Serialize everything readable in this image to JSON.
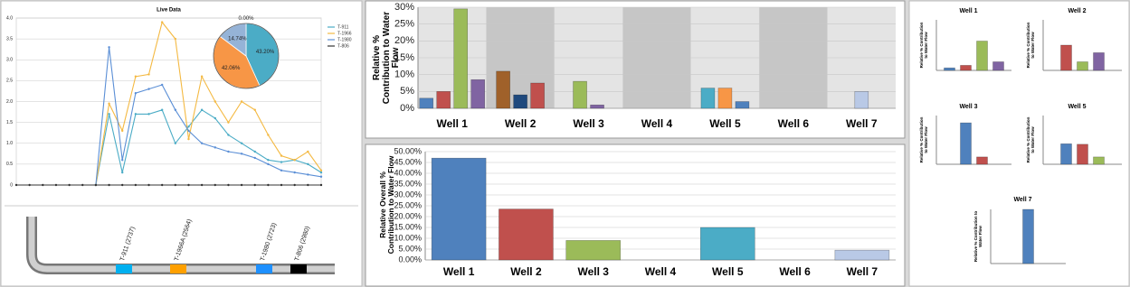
{
  "chart_data": [
    {
      "type": "line",
      "title": "Live Data",
      "categories": [
        null,
        null,
        null,
        null,
        null,
        null,
        null,
        null,
        null,
        null,
        null,
        null,
        null,
        null,
        null,
        null,
        null,
        null,
        null,
        null,
        null,
        null,
        null,
        null
      ],
      "series": [
        {
          "name": "T-911",
          "color": "#4bacc6",
          "values": [
            null,
            null,
            null,
            null,
            null,
            null,
            0,
            1.7,
            0.3,
            1.7,
            1.7,
            1.8,
            1.0,
            1.4,
            1.8,
            1.6,
            1.2,
            1.0,
            0.8,
            0.6,
            0.55,
            0.6,
            0.5,
            0.3
          ]
        },
        {
          "name": "T-1966",
          "color": "#f4b942",
          "values": [
            null,
            null,
            null,
            null,
            null,
            null,
            0,
            1.95,
            1.3,
            2.6,
            2.65,
            3.9,
            3.5,
            1.1,
            2.6,
            2.0,
            1.5,
            2.0,
            1.8,
            1.2,
            0.7,
            0.6,
            0.8,
            0.35
          ]
        },
        {
          "name": "T-1980",
          "color": "#5b8fd6",
          "values": [
            null,
            null,
            null,
            null,
            null,
            null,
            0,
            3.3,
            0.6,
            2.2,
            2.3,
            2.4,
            1.8,
            1.3,
            1.0,
            0.9,
            0.8,
            0.75,
            0.65,
            0.5,
            0.35,
            0.3,
            0.25,
            0.2
          ]
        },
        {
          "name": "T-806",
          "color": "#333333",
          "values": [
            0,
            0,
            0,
            0,
            0,
            0,
            0,
            0,
            0,
            0,
            0,
            0,
            0,
            0,
            0,
            0,
            0,
            0,
            0,
            0,
            0,
            0,
            0,
            0
          ]
        }
      ],
      "ylim": [
        0,
        4.0
      ],
      "yticks": [
        0,
        {
          "value": 0.5,
          "label": "0.5"
        },
        {
          "value": 1,
          "label": "1.0"
        },
        {
          "value": 1.5,
          "label": "1.5"
        },
        {
          "value": 2,
          "label": "2.0"
        },
        {
          "value": 2.5,
          "label": "2.5"
        },
        {
          "value": 3,
          "label": "3.0"
        },
        {
          "value": 3.5,
          "label": "3.5"
        },
        {
          "value": 4,
          "label": "4.0"
        }
      ],
      "grid": true
    },
    {
      "type": "pie",
      "values": [
        43.2,
        42.06,
        14.74,
        0.0
      ],
      "value_labels": [
        "43.20%",
        "42.06%",
        "14.74%",
        "0.00%"
      ],
      "colors": [
        "#4bacc6",
        "#f79646",
        "#95b3d7",
        "#1f497d"
      ]
    },
    {
      "type": "bar",
      "y_label": "Relative % Contribution to Water Flow",
      "groups": [
        {
          "category": "Well 1",
          "values": [
            3,
            5,
            29.5,
            8.5
          ],
          "colors": [
            "#4f81bd",
            "#c0504d",
            "#9bbb59",
            "#8064a2"
          ]
        },
        {
          "category": "Well 2",
          "values": [
            11,
            4,
            7.5
          ],
          "colors": [
            "#a0612a",
            "#1f497d",
            "#c0504d"
          ]
        },
        {
          "category": "Well 3",
          "values": [
            8,
            1
          ],
          "colors": [
            "#9bbb59",
            "#8064a2"
          ]
        },
        {
          "category": "Well 4",
          "values": [],
          "colors": []
        },
        {
          "category": "Well 5",
          "values": [
            6,
            6,
            2
          ],
          "colors": [
            "#4bacc6",
            "#f79646",
            "#4f81bd"
          ]
        },
        {
          "category": "Well 6",
          "values": [],
          "colors": []
        },
        {
          "category": "Well 7",
          "values": [
            5
          ],
          "colors": [
            "#b9c9e6"
          ]
        }
      ],
      "ylim": [
        0,
        30
      ],
      "yticks": [
        {
          "value": 0,
          "label": "0%"
        },
        {
          "value": 5,
          "label": "5%"
        },
        {
          "value": 10,
          "label": "10%"
        },
        {
          "value": 15,
          "label": "15%"
        },
        {
          "value": 20,
          "label": "20%"
        },
        {
          "value": 25,
          "label": "25%"
        },
        {
          "value": 30,
          "label": "30%"
        }
      ],
      "grid": true,
      "bands": true
    },
    {
      "type": "bar",
      "y_label": "Relative Overall % Contribution to Water Flow",
      "categories": [
        "Well 1",
        "Well 2",
        "Well 3",
        "Well 4",
        "Well 5",
        "Well 6",
        "Well 7"
      ],
      "values": [
        47,
        23.5,
        9,
        0,
        15,
        0,
        4.5
      ],
      "colors": [
        "#4f81bd",
        "#c0504d",
        "#9bbb59",
        "#8064a2",
        "#4bacc6",
        "#f79646",
        "#b9c9e6"
      ],
      "ylim": [
        0,
        50
      ],
      "yticks": [
        {
          "value": 0,
          "label": "0.00%"
        },
        {
          "value": 5,
          "label": "5.00%"
        },
        {
          "value": 10,
          "label": "10.00%"
        },
        {
          "value": 15,
          "label": "15.00%"
        },
        {
          "value": 20,
          "label": "20.00%"
        },
        {
          "value": 25,
          "label": "25.00%"
        },
        {
          "value": 30,
          "label": "30.00%"
        },
        {
          "value": 35,
          "label": "35.00%"
        },
        {
          "value": 40,
          "label": "40.00%"
        },
        {
          "value": 45,
          "label": "45.00%"
        },
        {
          "value": 50,
          "label": "50.00%"
        }
      ],
      "grid": true
    },
    {
      "type": "bar",
      "title": "Well 1",
      "y_label": "Relative % Contribution to Water Flow",
      "values": [
        5,
        10,
        58,
        17
      ],
      "colors": [
        "#4f81bd",
        "#c0504d",
        "#9bbb59",
        "#8064a2"
      ],
      "ylim": [
        0,
        100
      ]
    },
    {
      "type": "bar",
      "title": "Well 2",
      "y_label": "Relative % Contribution to Water Flow",
      "values": [
        50,
        17,
        35
      ],
      "colors": [
        "#c0504d",
        "#9bbb59",
        "#8064a2"
      ],
      "ylim": [
        0,
        100
      ]
    },
    {
      "type": "bar",
      "title": "Well 3",
      "y_label": "Relative % Contribution to Water Flow",
      "values": [
        85,
        15
      ],
      "colors": [
        "#4f81bd",
        "#c0504d"
      ],
      "ylim": [
        0,
        100
      ]
    },
    {
      "type": "bar",
      "title": "Well 5",
      "y_label": "Relative % Contribution to Water Flow",
      "values": [
        42,
        41,
        15
      ],
      "colors": [
        "#4f81bd",
        "#c0504d",
        "#9bbb59"
      ],
      "ylim": [
        0,
        100
      ]
    },
    {
      "type": "bar",
      "title": "Well 7",
      "y_label": "Relative % Contribution to Water Flow",
      "values": [
        100
      ],
      "colors": [
        "#4f81bd"
      ],
      "ylim": [
        0,
        100
      ]
    }
  ],
  "well_diagram": {
    "tracers": [
      {
        "label": "T-911 (2737)",
        "color": "#00b0f0"
      },
      {
        "label": "T-1966A (2564)",
        "color": "#ffa000"
      },
      {
        "label": "T-1980 (2723)",
        "color": "#1e90ff"
      },
      {
        "label": "T-806 (2980)",
        "color": "#000000"
      }
    ]
  }
}
